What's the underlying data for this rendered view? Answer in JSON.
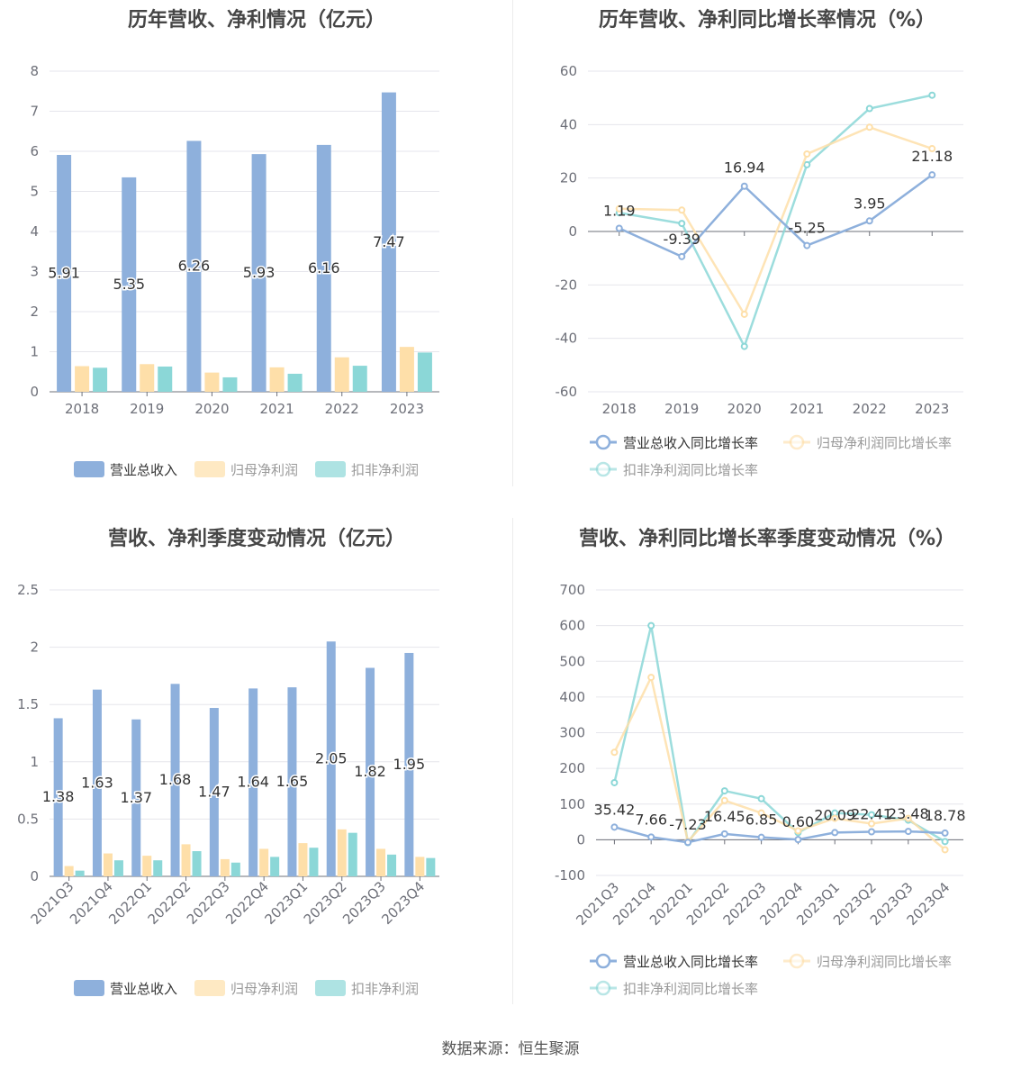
{
  "source_text": "数据来源：恒生聚源",
  "colors": {
    "revenue": "#8eb0dc",
    "net": "#fedfa9",
    "deducted": "#8bd7d7",
    "grid": "#e6e6ec",
    "axis": "#6e7079",
    "text": "#6e7079",
    "label": "#333333"
  },
  "chart_data": [
    {
      "type": "bar",
      "title": "历年营收、净利情况（亿元）",
      "categories": [
        "2018",
        "2019",
        "2020",
        "2021",
        "2022",
        "2023"
      ],
      "ylim": [
        0,
        8
      ],
      "yticks": [
        "0",
        "1",
        "2",
        "3",
        "4",
        "5",
        "6",
        "7",
        "8"
      ],
      "legend_position": "bottom",
      "series": [
        {
          "name": "营业总收入",
          "values": [
            5.91,
            5.35,
            6.26,
            5.93,
            6.16,
            7.47
          ],
          "labels": [
            "5.91",
            "5.35",
            "6.26",
            "5.93",
            "6.16",
            "7.47"
          ]
        },
        {
          "name": "归母净利润",
          "values": [
            0.64,
            0.69,
            0.48,
            0.61,
            0.86,
            1.12
          ]
        },
        {
          "name": "扣非净利润",
          "values": [
            0.6,
            0.63,
            0.36,
            0.45,
            0.65,
            0.98
          ]
        }
      ]
    },
    {
      "type": "line",
      "title": "历年营收、净利同比增长率情况（%）",
      "categories": [
        "2018",
        "2019",
        "2020",
        "2021",
        "2022",
        "2023"
      ],
      "ylim": [
        -60,
        60
      ],
      "yticks": [
        "-60",
        "-40",
        "-20",
        "0",
        "20",
        "40",
        "60"
      ],
      "legend_position": "bottom",
      "series": [
        {
          "name": "营业总收入同比增长率",
          "values": [
            1.19,
            -9.39,
            16.94,
            -5.25,
            3.95,
            21.18
          ],
          "labels": [
            "1.19",
            "-9.39",
            "16.94",
            "-5.25",
            "3.95",
            "21.18"
          ]
        },
        {
          "name": "归母净利润同比增长率",
          "values": [
            8.5,
            8.0,
            -31.0,
            29.0,
            39.0,
            31.0
          ]
        },
        {
          "name": "扣非净利润同比增长率",
          "values": [
            7.0,
            3.0,
            -43.0,
            25.0,
            46.0,
            51.0
          ]
        }
      ]
    },
    {
      "type": "bar",
      "title": "营收、净利季度变动情况（亿元）",
      "categories": [
        "2021Q3",
        "2021Q4",
        "2022Q1",
        "2022Q2",
        "2022Q3",
        "2022Q4",
        "2023Q1",
        "2023Q2",
        "2023Q3",
        "2023Q4"
      ],
      "ylim": [
        0,
        2.5
      ],
      "yticks": [
        "0",
        "0.5",
        "1",
        "1.5",
        "2",
        "2.5"
      ],
      "legend_position": "bottom",
      "series": [
        {
          "name": "营业总收入",
          "values": [
            1.38,
            1.63,
            1.37,
            1.68,
            1.47,
            1.64,
            1.65,
            2.05,
            1.82,
            1.95
          ],
          "labels": [
            "1.38",
            "1.63",
            "1.37",
            "1.68",
            "1.47",
            "1.64",
            "1.65",
            "2.05",
            "1.82",
            "1.95"
          ]
        },
        {
          "name": "归母净利润",
          "values": [
            0.09,
            0.2,
            0.18,
            0.28,
            0.15,
            0.24,
            0.29,
            0.41,
            0.24,
            0.17
          ]
        },
        {
          "name": "扣非净利润",
          "values": [
            0.05,
            0.14,
            0.14,
            0.22,
            0.12,
            0.17,
            0.25,
            0.38,
            0.19,
            0.16
          ]
        }
      ]
    },
    {
      "type": "line",
      "title": "营收、净利同比增长率季度变动情况（%）",
      "categories": [
        "2021Q3",
        "2021Q4",
        "2022Q1",
        "2022Q2",
        "2022Q3",
        "2022Q4",
        "2023Q1",
        "2023Q2",
        "2023Q3",
        "2023Q4"
      ],
      "ylim": [
        -100,
        700
      ],
      "yticks": [
        "-100",
        "0",
        "100",
        "200",
        "300",
        "400",
        "500",
        "600",
        "700"
      ],
      "legend_position": "bottom",
      "series": [
        {
          "name": "营业总收入同比增长率",
          "values": [
            35.42,
            7.66,
            -7.23,
            16.45,
            6.85,
            0.6,
            20.09,
            22.41,
            23.48,
            18.78
          ],
          "labels": [
            "35.42",
            "7.66",
            "-7.23",
            "16.45",
            "6.85",
            "0.60",
            "20.09",
            "22.41",
            "23.48",
            "18.78"
          ]
        },
        {
          "name": "归母净利润同比增长率",
          "values": [
            245,
            455,
            -5,
            110,
            75,
            25,
            60,
            45,
            60,
            -28
          ]
        },
        {
          "name": "扣非净利润同比增长率",
          "values": [
            160,
            600,
            -8,
            137,
            115,
            20,
            75,
            70,
            55,
            -5
          ]
        }
      ]
    }
  ]
}
